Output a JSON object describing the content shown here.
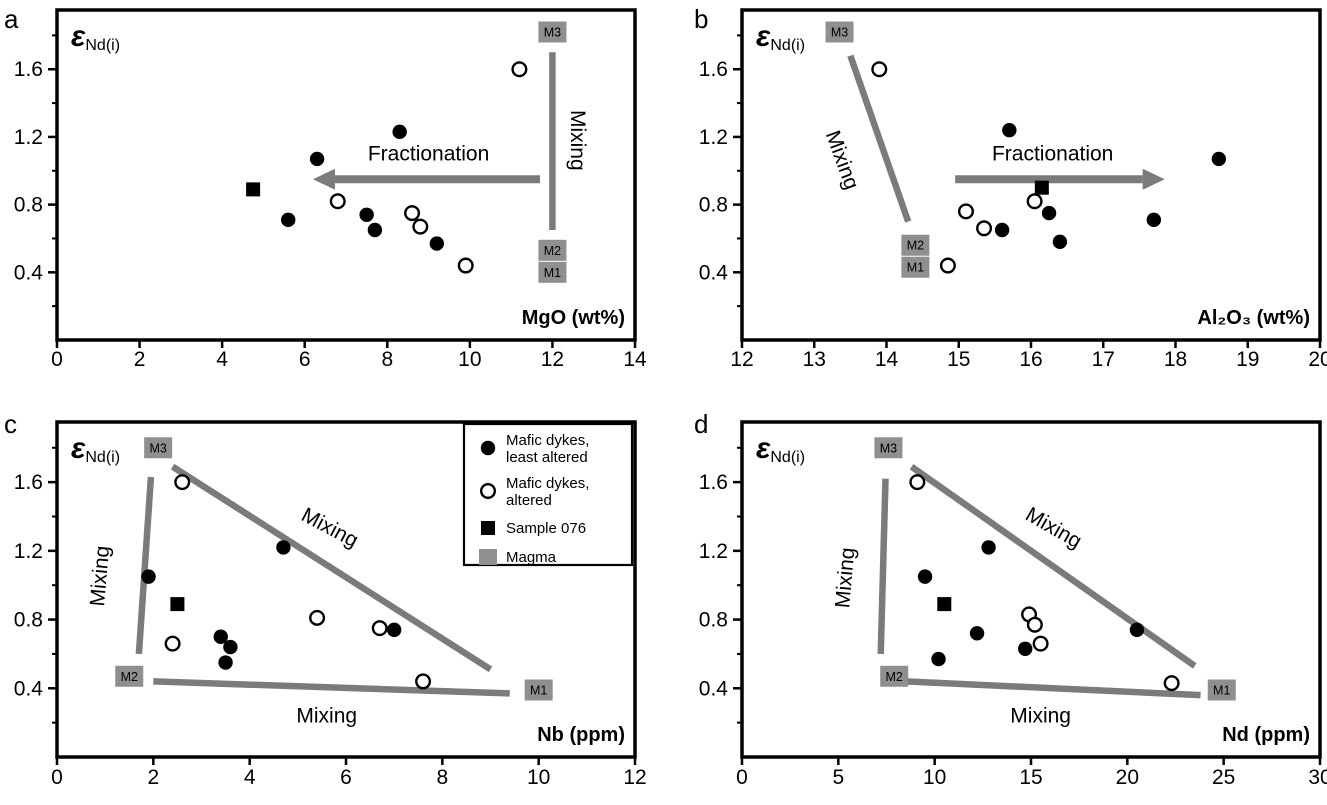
{
  "figure": {
    "background": "#ffffff",
    "colors": {
      "marker": "#000000",
      "magma_fill": "#8f8f8f",
      "gray_line": "#7b7b7b",
      "axis": "#000000"
    }
  },
  "legend": {
    "items": [
      {
        "marker": "filled-circle",
        "lines": [
          "Mafic dykes,",
          "least altered"
        ]
      },
      {
        "marker": "open-circle",
        "lines": [
          "Mafic dykes,",
          "altered"
        ]
      },
      {
        "marker": "filled-square",
        "lines": [
          "Sample 076"
        ]
      },
      {
        "marker": "magma-square",
        "lines": [
          "Magma"
        ]
      }
    ]
  },
  "chart_data": [
    {
      "id": "a",
      "panel_label": "a",
      "type": "scatter",
      "y_symbol": "ε",
      "y_sub": "Nd(i)",
      "xlabel": "MgO (wt%)",
      "xlim": [
        0,
        14
      ],
      "xticks": [
        0,
        2,
        4,
        6,
        8,
        10,
        12,
        14
      ],
      "ylim": [
        0,
        1.95
      ],
      "yticks": [
        0.4,
        0.8,
        1.2,
        1.6
      ],
      "yticks_minor": [
        0.2,
        0.6,
        1.0,
        1.4,
        1.8
      ],
      "series": [
        {
          "name": "Mafic dykes, least altered",
          "marker": "filled-circle",
          "points": [
            [
              5.6,
              0.71
            ],
            [
              6.3,
              1.07
            ],
            [
              7.5,
              0.74
            ],
            [
              7.7,
              0.65
            ],
            [
              8.3,
              1.23
            ],
            [
              9.2,
              0.57
            ]
          ]
        },
        {
          "name": "Mafic dykes, altered",
          "marker": "open-circle",
          "points": [
            [
              6.8,
              0.82
            ],
            [
              8.6,
              0.75
            ],
            [
              8.8,
              0.67
            ],
            [
              9.9,
              0.44
            ],
            [
              11.2,
              1.6
            ]
          ]
        },
        {
          "name": "Sample 076",
          "marker": "filled-square",
          "points": [
            [
              4.75,
              0.89
            ]
          ]
        }
      ],
      "magma_points": [
        {
          "label": "M3",
          "x": 12,
          "y": 1.82
        },
        {
          "label": "M2",
          "x": 12,
          "y": 0.53
        },
        {
          "label": "M1",
          "x": 12,
          "y": 0.4
        }
      ],
      "mixing_lines": [
        {
          "x1": 12,
          "y1": 1.7,
          "x2": 12,
          "y2": 0.65,
          "label": "Mixing",
          "label_x": 12.45,
          "label_y": 1.18,
          "label_angle": 90
        }
      ],
      "arrows": [
        {
          "x1": 11.7,
          "y1": 0.95,
          "x2": 6.2,
          "y2": 0.95,
          "label": "Fractionation",
          "label_x": 9.0,
          "label_y": 1.06
        }
      ],
      "show_legend": false
    },
    {
      "id": "b",
      "panel_label": "b",
      "type": "scatter",
      "y_symbol": "ε",
      "y_sub": "Nd(i)",
      "xlabel": "Al₂O₃ (wt%)",
      "xlim": [
        12,
        20
      ],
      "xticks": [
        12,
        13,
        14,
        15,
        16,
        17,
        18,
        19,
        20
      ],
      "ylim": [
        0,
        1.95
      ],
      "yticks": [
        0.4,
        0.8,
        1.2,
        1.6
      ],
      "yticks_minor": [
        0.2,
        0.6,
        1.0,
        1.4,
        1.8
      ],
      "series": [
        {
          "name": "Mafic dykes, least altered",
          "marker": "filled-circle",
          "points": [
            [
              15.6,
              0.65
            ],
            [
              15.7,
              1.24
            ],
            [
              16.25,
              0.75
            ],
            [
              16.4,
              0.58
            ],
            [
              17.7,
              0.71
            ],
            [
              18.6,
              1.07
            ]
          ]
        },
        {
          "name": "Mafic dykes, altered",
          "marker": "open-circle",
          "points": [
            [
              13.9,
              1.6
            ],
            [
              14.85,
              0.44
            ],
            [
              15.1,
              0.76
            ],
            [
              15.35,
              0.66
            ],
            [
              16.05,
              0.82
            ]
          ]
        },
        {
          "name": "Sample 076",
          "marker": "filled-square",
          "points": [
            [
              16.15,
              0.9
            ]
          ]
        }
      ],
      "magma_points": [
        {
          "label": "M3",
          "x": 13.35,
          "y": 1.82
        },
        {
          "label": "M2",
          "x": 14.4,
          "y": 0.56
        },
        {
          "label": "M1",
          "x": 14.4,
          "y": 0.43
        }
      ],
      "mixing_lines": [
        {
          "x1": 13.5,
          "y1": 1.68,
          "x2": 14.3,
          "y2": 0.7,
          "label": "Mixing",
          "label_x": 13.3,
          "label_y": 1.05,
          "label_angle": 70
        }
      ],
      "arrows": [
        {
          "x1": 14.95,
          "y1": 0.95,
          "x2": 17.85,
          "y2": 0.95,
          "label": "Fractionation",
          "label_x": 16.3,
          "label_y": 1.06
        }
      ],
      "show_legend": false
    },
    {
      "id": "c",
      "panel_label": "c",
      "type": "scatter",
      "y_symbol": "ε",
      "y_sub": "Nd(i)",
      "xlabel": "Nb (ppm)",
      "xlim": [
        0,
        12
      ],
      "xticks": [
        0,
        2,
        4,
        6,
        8,
        10,
        12
      ],
      "ylim": [
        0,
        1.95
      ],
      "yticks": [
        0.4,
        0.8,
        1.2,
        1.6
      ],
      "yticks_minor": [
        0.2,
        0.6,
        1.0,
        1.4,
        1.8
      ],
      "series": [
        {
          "name": "Mafic dykes, least altered",
          "marker": "filled-circle",
          "points": [
            [
              1.9,
              1.05
            ],
            [
              3.4,
              0.7
            ],
            [
              3.6,
              0.64
            ],
            [
              3.5,
              0.55
            ],
            [
              4.7,
              1.22
            ],
            [
              7.0,
              0.74
            ]
          ]
        },
        {
          "name": "Mafic dykes, altered",
          "marker": "open-circle",
          "points": [
            [
              2.4,
              0.66
            ],
            [
              2.6,
              1.6
            ],
            [
              5.4,
              0.81
            ],
            [
              6.7,
              0.75
            ],
            [
              7.6,
              0.44
            ]
          ]
        },
        {
          "name": "Sample 076",
          "marker": "filled-square",
          "points": [
            [
              2.5,
              0.89
            ]
          ]
        }
      ],
      "magma_points": [
        {
          "label": "M3",
          "x": 2.1,
          "y": 1.8
        },
        {
          "label": "M2",
          "x": 1.5,
          "y": 0.47
        },
        {
          "label": "M1",
          "x": 10.0,
          "y": 0.39
        }
      ],
      "mixing_lines": [
        {
          "x1": 2.4,
          "y1": 1.69,
          "x2": 9.0,
          "y2": 0.51,
          "label": "Mixing",
          "label_x": 5.6,
          "label_y": 1.3,
          "label_angle": 28
        },
        {
          "x1": 1.95,
          "y1": 1.63,
          "x2": 1.7,
          "y2": 0.6,
          "label": "Mixing",
          "label_x": 1.03,
          "label_y": 1.05,
          "label_angle": -85
        },
        {
          "x1": 2.0,
          "y1": 0.44,
          "x2": 9.4,
          "y2": 0.37,
          "label": "Mixing",
          "label_x": 5.6,
          "label_y": 0.2,
          "label_angle": 0
        }
      ],
      "arrows": [],
      "show_legend": true
    },
    {
      "id": "d",
      "panel_label": "d",
      "type": "scatter",
      "y_symbol": "ε",
      "y_sub": "Nd(i)",
      "xlabel": "Nd (ppm)",
      "xlim": [
        0,
        30
      ],
      "xticks": [
        0,
        5,
        10,
        15,
        20,
        25,
        30
      ],
      "ylim": [
        0,
        1.95
      ],
      "yticks": [
        0.4,
        0.8,
        1.2,
        1.6
      ],
      "yticks_minor": [
        0.2,
        0.6,
        1.0,
        1.4,
        1.8
      ],
      "series": [
        {
          "name": "Mafic dykes, least altered",
          "marker": "filled-circle",
          "points": [
            [
              9.5,
              1.05
            ],
            [
              10.2,
              0.57
            ],
            [
              12.2,
              0.72
            ],
            [
              12.8,
              1.22
            ],
            [
              14.7,
              0.63
            ],
            [
              20.5,
              0.74
            ]
          ]
        },
        {
          "name": "Mafic dykes, altered",
          "marker": "open-circle",
          "points": [
            [
              9.1,
              1.6
            ],
            [
              14.9,
              0.83
            ],
            [
              15.2,
              0.77
            ],
            [
              15.5,
              0.66
            ],
            [
              22.3,
              0.43
            ]
          ]
        },
        {
          "name": "Sample 076",
          "marker": "filled-square",
          "points": [
            [
              10.5,
              0.89
            ]
          ]
        }
      ],
      "magma_points": [
        {
          "label": "M3",
          "x": 7.6,
          "y": 1.8
        },
        {
          "label": "M2",
          "x": 7.9,
          "y": 0.47
        },
        {
          "label": "M1",
          "x": 24.9,
          "y": 0.39
        }
      ],
      "mixing_lines": [
        {
          "x1": 8.8,
          "y1": 1.69,
          "x2": 23.5,
          "y2": 0.53,
          "label": "Mixing",
          "label_x": 16.0,
          "label_y": 1.3,
          "label_angle": 30
        },
        {
          "x1": 7.45,
          "y1": 1.62,
          "x2": 7.2,
          "y2": 0.6,
          "label": "Mixing",
          "label_x": 5.7,
          "label_y": 1.04,
          "label_angle": -85
        },
        {
          "x1": 8.5,
          "y1": 0.44,
          "x2": 23.8,
          "y2": 0.36,
          "label": "Mixing",
          "label_x": 15.5,
          "label_y": 0.2,
          "label_angle": 0
        }
      ],
      "arrows": [],
      "show_legend": false
    }
  ]
}
